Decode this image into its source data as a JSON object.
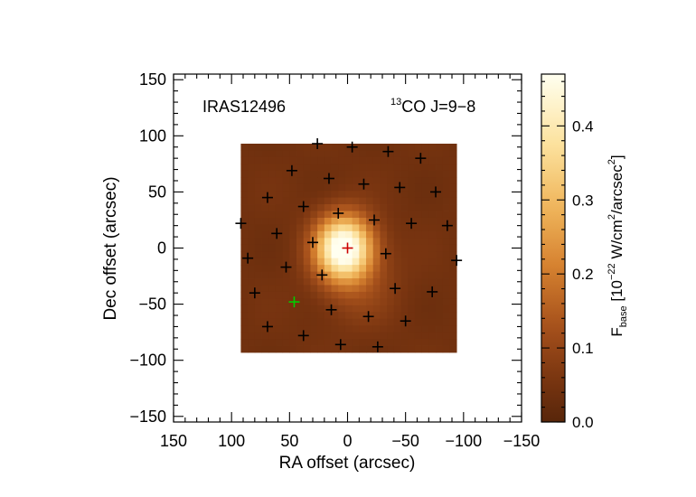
{
  "chart_data": {
    "type": "heatmap",
    "title_left": "IRAS12496",
    "title_right_sup": "13",
    "title_right": "CO J=9−8",
    "xlabel": "RA offset (arcsec)",
    "ylabel": "Dec offset (arcsec)",
    "xlim": [
      150,
      -150
    ],
    "ylim": [
      -155,
      155
    ],
    "xticks": [
      150,
      100,
      50,
      0,
      -50,
      -100,
      -150
    ],
    "xtick_labels": [
      "150",
      "100",
      "50",
      "0",
      "−50",
      "−100",
      "−150"
    ],
    "yticks": [
      150,
      100,
      50,
      0,
      -50,
      -100,
      -150
    ],
    "ytick_labels": [
      "150",
      "100",
      "50",
      "0",
      "−50",
      "−100",
      "−150"
    ],
    "map_extent": {
      "ra": [
        92,
        -94
      ],
      "dec": [
        -88,
        93
      ]
    },
    "peak": {
      "ra": 0,
      "dec": 0,
      "value": 0.47
    },
    "colorbar": {
      "label_prefix": "F",
      "label_sub": "base",
      "label_open": " [10",
      "label_exp1": "−22",
      "label_mid": " W/cm",
      "label_exp2": "2",
      "label_mid2": "/arcsec",
      "label_exp3": "2",
      "label_close": "]",
      "range": [
        0,
        0.47
      ],
      "ticks": [
        0.0,
        0.1,
        0.2,
        0.3,
        0.4
      ],
      "tick_labels": [
        "0.0",
        "0.1",
        "0.2",
        "0.3",
        "0.4"
      ]
    },
    "detector_positions": [
      {
        "ra": 26,
        "dec": 93
      },
      {
        "ra": -4,
        "dec": 90
      },
      {
        "ra": -35,
        "dec": 86
      },
      {
        "ra": -63,
        "dec": 80
      },
      {
        "ra": 48,
        "dec": 69
      },
      {
        "ra": 16,
        "dec": 62
      },
      {
        "ra": -14,
        "dec": 57
      },
      {
        "ra": -45,
        "dec": 54
      },
      {
        "ra": -76,
        "dec": 50
      },
      {
        "ra": 69,
        "dec": 45
      },
      {
        "ra": 38,
        "dec": 37
      },
      {
        "ra": 8,
        "dec": 31
      },
      {
        "ra": -23,
        "dec": 25
      },
      {
        "ra": -55,
        "dec": 22
      },
      {
        "ra": -86,
        "dec": 20
      },
      {
        "ra": 92,
        "dec": 22
      },
      {
        "ra": 61,
        "dec": 13
      },
      {
        "ra": 30,
        "dec": 5
      },
      {
        "ra": -33,
        "dec": -5
      },
      {
        "ra": -94,
        "dec": -11
      },
      {
        "ra": 86,
        "dec": -9
      },
      {
        "ra": 53,
        "dec": -17
      },
      {
        "ra": 22,
        "dec": -24
      },
      {
        "ra": 80,
        "dec": -40
      },
      {
        "ra": -41,
        "dec": -36
      },
      {
        "ra": -73,
        "dec": -39
      },
      {
        "ra": 14,
        "dec": -55
      },
      {
        "ra": -18,
        "dec": -61
      },
      {
        "ra": -50,
        "dec": -65
      },
      {
        "ra": 69,
        "dec": -70
      },
      {
        "ra": 38,
        "dec": -78
      },
      {
        "ra": 6,
        "dec": -86
      },
      {
        "ra": -26,
        "dec": -88
      }
    ],
    "central_detector": {
      "ra": 0,
      "dec": 0,
      "color": "#cc0000"
    },
    "highlight_detector": {
      "ra": 46,
      "dec": -48,
      "color": "#00cc00"
    },
    "marker_color": "#000000"
  }
}
